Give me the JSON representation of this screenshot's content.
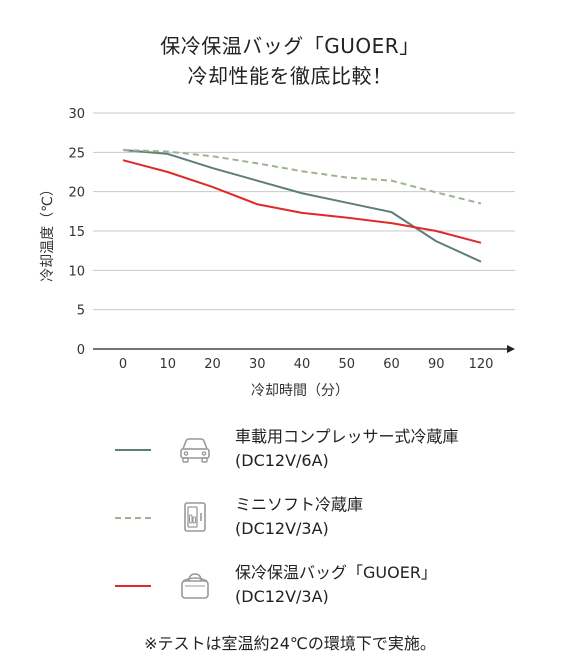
{
  "title_line1": "保冷保温バッグ「GUOER」",
  "title_line2": "冷却性能を徹底比較！",
  "footnote": "※テストは室温約24℃の環境下で実施。",
  "chart_data": {
    "type": "line",
    "x": [
      0,
      10,
      20,
      30,
      40,
      50,
      60,
      90,
      120
    ],
    "xticks": [
      "0",
      "10",
      "20",
      "30",
      "40",
      "50",
      "60",
      "90",
      "120"
    ],
    "xlabel": "冷却時間（分）",
    "ylabel": "冷却温度（℃）",
    "ylim": [
      0,
      30
    ],
    "yticks": [
      0,
      5,
      10,
      15,
      20,
      25,
      30
    ],
    "grid": true,
    "series": [
      {
        "name_line1": "車載用コンプレッサー式冷蔵庫",
        "name_line2": "(DC12V/6A)",
        "values": [
          25.3,
          24.8,
          23.0,
          21.4,
          19.8,
          18.6,
          17.4,
          13.7,
          11.1
        ],
        "color": "#5e7f76",
        "style": "solid",
        "icon": "car-icon"
      },
      {
        "name_line1": "ミニソフト冷蔵庫",
        "name_line2": "(DC12V/3A)",
        "values": [
          25.3,
          25.1,
          24.5,
          23.6,
          22.6,
          21.8,
          21.4,
          19.9,
          18.5
        ],
        "color": "#9cb493",
        "style": "dashed",
        "icon": "mini-fridge-icon"
      },
      {
        "name_line1": "保冷保温バッグ「GUOER」",
        "name_line2": "(DC12V/3A)",
        "values": [
          24.0,
          22.5,
          20.6,
          18.4,
          17.3,
          16.7,
          16.0,
          15.0,
          13.5
        ],
        "color": "#e02a2a",
        "style": "solid",
        "icon": "cooler-bag-icon"
      }
    ]
  }
}
